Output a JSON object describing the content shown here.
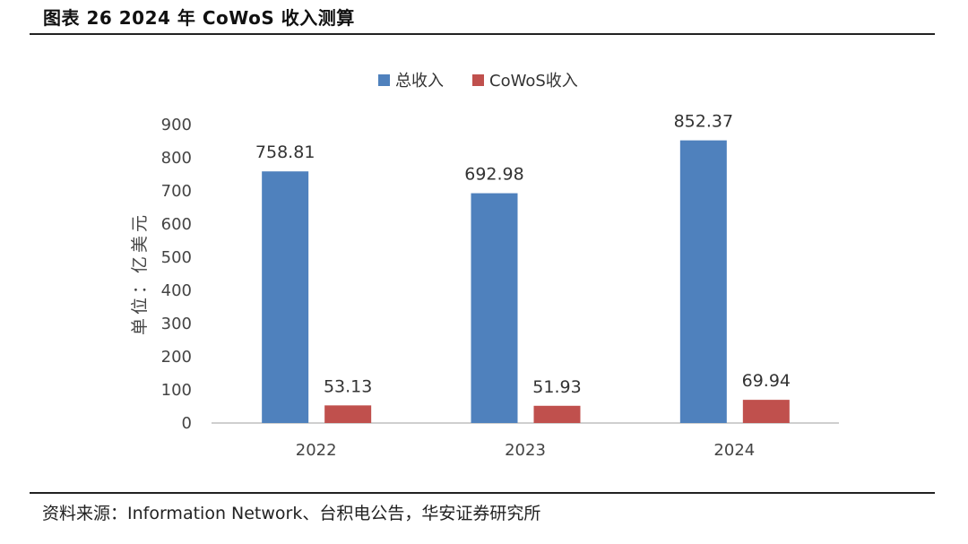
{
  "figure_title": "图表 26 2024 年 CoWoS 收入测算",
  "source": "资料来源：Information Network、台积电公告，华安证券研究所",
  "chart_data": {
    "type": "bar",
    "categories": [
      "2022",
      "2023",
      "2024"
    ],
    "series": [
      {
        "name": "总收入",
        "values": [
          758.81,
          692.98,
          852.37
        ],
        "color": "#4f81bd"
      },
      {
        "name": "CoWoS收入",
        "values": [
          53.13,
          51.93,
          69.94
        ],
        "color": "#c0504d"
      }
    ],
    "data_labels": [
      [
        "758.81",
        "692.98",
        "852.37"
      ],
      [
        "53.13",
        "51.93",
        "69.94"
      ]
    ],
    "ylabel": "单位：亿美元",
    "ylim": [
      0,
      900
    ],
    "yticks": [
      0,
      100,
      200,
      300,
      400,
      500,
      600,
      700,
      800,
      900
    ],
    "legend_position": "top-center",
    "grid": false
  }
}
